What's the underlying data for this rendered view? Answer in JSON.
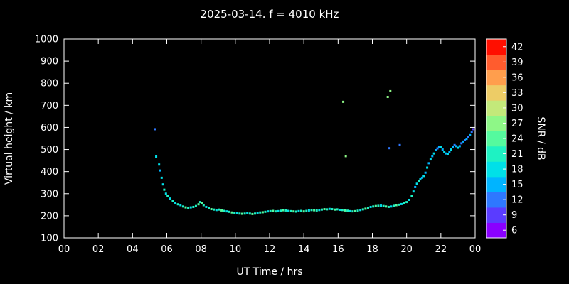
{
  "chart": {
    "title": "2025-03-14. f = 4010 kHz"
  },
  "axes": {
    "x_label": "UT Time / hrs",
    "y_label": "Virtual height / km",
    "x_ticks": [
      "00",
      "02",
      "04",
      "06",
      "08",
      "10",
      "12",
      "14",
      "16",
      "18",
      "20",
      "22",
      "00"
    ],
    "y_ticks": [
      "100",
      "200",
      "300",
      "400",
      "500",
      "600",
      "700",
      "800",
      "900",
      "1000"
    ],
    "background": "#000000",
    "frame_color": "#ffffff"
  },
  "colorbar": {
    "label": "SNR / dB",
    "ticks": [
      "6",
      "9",
      "12",
      "15",
      "18",
      "21",
      "24",
      "27",
      "30",
      "33",
      "36",
      "39",
      "42"
    ],
    "value_range": [
      4.5,
      43.5
    ],
    "segment_colors": [
      "#8a00ff",
      "#5a3cff",
      "#2e78ff",
      "#00b4ff",
      "#00e0e8",
      "#1ef2c3",
      "#55fa9e",
      "#8ef787",
      "#c3e97a",
      "#edcc66",
      "#ff9e4d",
      "#ff5c2e",
      "#ff0f00"
    ]
  },
  "chart_data": {
    "type": "scatter",
    "title": "2025-03-14. f = 4010 kHz",
    "xlabel": "UT Time / hrs",
    "ylabel": "Virtual height / km",
    "zlabel": "SNR / dB",
    "xlim": [
      0,
      24
    ],
    "ylim": [
      100,
      1000
    ],
    "zlim": [
      4.5,
      43.5
    ],
    "grid": false,
    "legend": "colorbar-right",
    "point_format": "[ut_hour, virtual_height_km, snr_db]",
    "points": [
      [
        5.3,
        592,
        12
      ],
      [
        5.38,
        468,
        18
      ],
      [
        5.55,
        432,
        18
      ],
      [
        5.62,
        405,
        15
      ],
      [
        5.7,
        372,
        18
      ],
      [
        5.78,
        342,
        18
      ],
      [
        5.85,
        318,
        21
      ],
      [
        5.95,
        300,
        18
      ],
      [
        6.05,
        290,
        21
      ],
      [
        6.2,
        278,
        18
      ],
      [
        6.35,
        268,
        21
      ],
      [
        6.5,
        258,
        18
      ],
      [
        6.65,
        252,
        21
      ],
      [
        6.8,
        248,
        18
      ],
      [
        6.95,
        242,
        21
      ],
      [
        7.1,
        238,
        24
      ],
      [
        7.25,
        236,
        21
      ],
      [
        7.4,
        238,
        18
      ],
      [
        7.55,
        240,
        21
      ],
      [
        7.7,
        244,
        21
      ],
      [
        7.85,
        252,
        24
      ],
      [
        7.95,
        262,
        21
      ],
      [
        8.05,
        258,
        24
      ],
      [
        8.15,
        248,
        21
      ],
      [
        8.3,
        240,
        18
      ],
      [
        8.45,
        234,
        21
      ],
      [
        8.6,
        230,
        24
      ],
      [
        8.75,
        228,
        21
      ],
      [
        8.9,
        226,
        18
      ],
      [
        9.05,
        228,
        21
      ],
      [
        9.2,
        224,
        24
      ],
      [
        9.35,
        222,
        21
      ],
      [
        9.5,
        220,
        18
      ],
      [
        9.65,
        218,
        21
      ],
      [
        9.8,
        215,
        24
      ],
      [
        9.95,
        213,
        21
      ],
      [
        10.1,
        212,
        18
      ],
      [
        10.25,
        210,
        21
      ],
      [
        10.4,
        209,
        24
      ],
      [
        10.55,
        210,
        21
      ],
      [
        10.7,
        212,
        18
      ],
      [
        10.85,
        210,
        21
      ],
      [
        11.0,
        208,
        24
      ],
      [
        11.15,
        210,
        21
      ],
      [
        11.3,
        213,
        18
      ],
      [
        11.45,
        215,
        21
      ],
      [
        11.6,
        216,
        24
      ],
      [
        11.75,
        218,
        21
      ],
      [
        11.9,
        220,
        18
      ],
      [
        12.05,
        221,
        21
      ],
      [
        12.2,
        222,
        24
      ],
      [
        12.35,
        220,
        21
      ],
      [
        12.5,
        221,
        18
      ],
      [
        12.65,
        223,
        21
      ],
      [
        12.8,
        225,
        24
      ],
      [
        12.95,
        224,
        21
      ],
      [
        13.1,
        222,
        18
      ],
      [
        13.25,
        221,
        21
      ],
      [
        13.4,
        220,
        24
      ],
      [
        13.55,
        219,
        21
      ],
      [
        13.7,
        221,
        18
      ],
      [
        13.85,
        222,
        21
      ],
      [
        14.0,
        220,
        24
      ],
      [
        14.15,
        222,
        21
      ],
      [
        14.3,
        224,
        18
      ],
      [
        14.45,
        226,
        21
      ],
      [
        14.6,
        225,
        24
      ],
      [
        14.75,
        224,
        21
      ],
      [
        14.9,
        226,
        18
      ],
      [
        15.05,
        228,
        21
      ],
      [
        15.2,
        230,
        24
      ],
      [
        15.35,
        229,
        21
      ],
      [
        15.5,
        231,
        18
      ],
      [
        15.65,
        230,
        21
      ],
      [
        15.8,
        228,
        24
      ],
      [
        15.95,
        229,
        21
      ],
      [
        16.1,
        227,
        18
      ],
      [
        16.25,
        226,
        21
      ],
      [
        16.3,
        716,
        27
      ],
      [
        16.4,
        224,
        24
      ],
      [
        16.45,
        470,
        27
      ],
      [
        16.55,
        223,
        21
      ],
      [
        16.7,
        221,
        18
      ],
      [
        16.85,
        220,
        21
      ],
      [
        17.0,
        221,
        24
      ],
      [
        17.15,
        223,
        21
      ],
      [
        17.3,
        226,
        18
      ],
      [
        17.45,
        229,
        21
      ],
      [
        17.6,
        232,
        24
      ],
      [
        17.75,
        236,
        21
      ],
      [
        17.9,
        240,
        18
      ],
      [
        18.05,
        242,
        21
      ],
      [
        18.2,
        244,
        24
      ],
      [
        18.35,
        245,
        21
      ],
      [
        18.5,
        246,
        18
      ],
      [
        18.65,
        244,
        21
      ],
      [
        18.8,
        242,
        24
      ],
      [
        18.9,
        738,
        27
      ],
      [
        18.95,
        240,
        21
      ],
      [
        19.0,
        506,
        12
      ],
      [
        19.05,
        764,
        27
      ],
      [
        19.1,
        242,
        18
      ],
      [
        19.25,
        245,
        21
      ],
      [
        19.4,
        248,
        24
      ],
      [
        19.55,
        250,
        21
      ],
      [
        19.6,
        520,
        12
      ],
      [
        19.7,
        253,
        18
      ],
      [
        19.85,
        256,
        21
      ],
      [
        20.0,
        262,
        21
      ],
      [
        20.15,
        272,
        18
      ],
      [
        20.3,
        290,
        21
      ],
      [
        20.4,
        310,
        18
      ],
      [
        20.5,
        330,
        15
      ],
      [
        20.6,
        345,
        18
      ],
      [
        20.7,
        358,
        21
      ],
      [
        20.8,
        365,
        18
      ],
      [
        20.9,
        372,
        15
      ],
      [
        21.0,
        380,
        18
      ],
      [
        21.1,
        395,
        15
      ],
      [
        21.2,
        418,
        18
      ],
      [
        21.3,
        438,
        15
      ],
      [
        21.4,
        455,
        18
      ],
      [
        21.5,
        470,
        15
      ],
      [
        21.6,
        482,
        18
      ],
      [
        21.7,
        497,
        15
      ],
      [
        21.8,
        505,
        12
      ],
      [
        21.9,
        510,
        15
      ],
      [
        22.0,
        512,
        18
      ],
      [
        22.1,
        500,
        15
      ],
      [
        22.2,
        490,
        18
      ],
      [
        22.3,
        482,
        15
      ],
      [
        22.4,
        478,
        18
      ],
      [
        22.5,
        488,
        15
      ],
      [
        22.6,
        500,
        18
      ],
      [
        22.7,
        512,
        15
      ],
      [
        22.8,
        520,
        12
      ],
      [
        22.9,
        515,
        15
      ],
      [
        23.0,
        508,
        18
      ],
      [
        23.1,
        515,
        15
      ],
      [
        23.2,
        528,
        12
      ],
      [
        23.3,
        536,
        15
      ],
      [
        23.4,
        542,
        12
      ],
      [
        23.5,
        548,
        15
      ],
      [
        23.6,
        556,
        12
      ],
      [
        23.7,
        565,
        15
      ],
      [
        23.8,
        578,
        12
      ],
      [
        23.9,
        592,
        9
      ]
    ]
  }
}
